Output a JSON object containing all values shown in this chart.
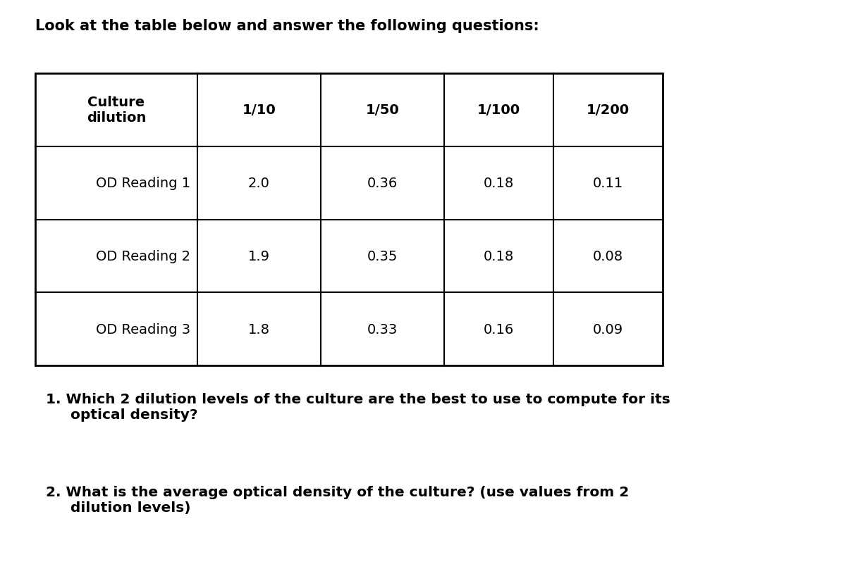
{
  "title": "Look at the table below and answer the following questions:",
  "title_fontsize": 15,
  "table_header": [
    "Culture\ndilution",
    "1/10",
    "1/50",
    "1/100",
    "1/200"
  ],
  "table_rows": [
    [
      "OD Reading 1",
      "2.0",
      "0.36",
      "0.18",
      "0.11"
    ],
    [
      "OD Reading 2",
      "1.9",
      "0.35",
      "0.18",
      "0.08"
    ],
    [
      "OD Reading 3",
      "1.8",
      "0.33",
      "0.16",
      "0.09"
    ]
  ],
  "question1_num": "1.",
  "question1_text": " Which 2 dilution levels of the culture are the best to use to compute for its\n     optical density?",
  "question2_num": "2.",
  "question2_text": " What is the average optical density of the culture? (use values from 2\n     dilution levels)",
  "bg_color": "#ffffff",
  "border_color": "#000000",
  "text_color": "#000000",
  "font_size_table": 14,
  "font_size_questions": 14.5,
  "fig_width": 12.0,
  "fig_height": 8.29,
  "dpi": 100
}
